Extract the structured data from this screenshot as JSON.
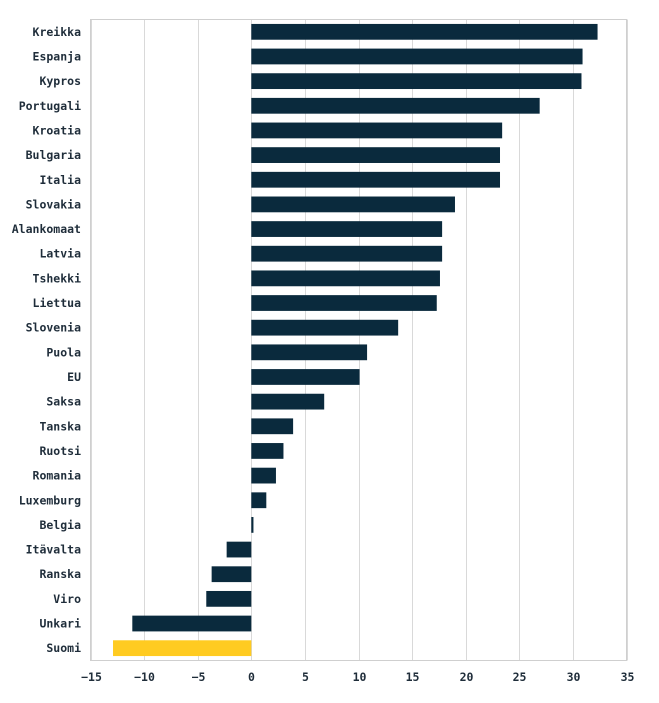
{
  "chart_data": {
    "type": "bar",
    "orientation": "horizontal",
    "title": "",
    "xlabel": "",
    "ylabel": "",
    "xlim": [
      -15,
      35
    ],
    "xticks": [
      -15,
      -10,
      -5,
      0,
      5,
      10,
      15,
      20,
      25,
      30,
      35
    ],
    "xtick_labels": [
      "−15",
      "−10",
      "−5",
      "0",
      "5",
      "10",
      "15",
      "20",
      "25",
      "30",
      "35"
    ],
    "grid": true,
    "categories": [
      "Kreikka",
      "Espanja",
      "Kypros",
      "Portugali",
      "Kroatia",
      "Bulgaria",
      "Italia",
      "Slovakia",
      "Alankomaat",
      "Latvia",
      "Tshekki",
      "Liettua",
      "Slovenia",
      "Puola",
      "EU",
      "Saksa",
      "Tanska",
      "Ruotsi",
      "Romania",
      "Luxemburg",
      "Belgia",
      "Itävalta",
      "Ranska",
      "Viro",
      "Unkari",
      "Suomi"
    ],
    "values": [
      32.3,
      30.9,
      30.8,
      26.9,
      23.4,
      23.2,
      23.2,
      19.0,
      17.8,
      17.8,
      17.6,
      17.3,
      13.7,
      10.8,
      10.1,
      6.8,
      3.9,
      3.0,
      2.3,
      1.4,
      0.2,
      -2.3,
      -3.7,
      -4.2,
      -11.1,
      -12.9
    ],
    "highlight": "Suomi",
    "colors": {
      "default": "#0a2a3d",
      "highlight": "#ffcb21"
    }
  }
}
